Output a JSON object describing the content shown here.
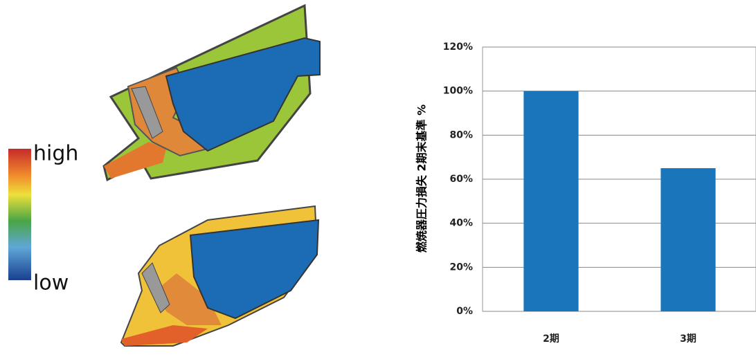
{
  "colorbar": {
    "high": "high",
    "low": "low"
  },
  "chart_data": {
    "type": "bar",
    "y_label": "燃焼器圧力損失 2期末基準 %",
    "categories": [
      "2期",
      "3期"
    ],
    "values": [
      100,
      65
    ],
    "color": "#1a75bb",
    "ylim": [
      0,
      120
    ],
    "yticks": [
      {
        "value": 0,
        "label": "0%"
      },
      {
        "value": 20,
        "label": "20%"
      },
      {
        "value": 40,
        "label": "40%"
      },
      {
        "value": 60,
        "label": "60%"
      },
      {
        "value": 80,
        "label": "80%"
      },
      {
        "value": 100,
        "label": "100%"
      },
      {
        "value": 120,
        "label": "120%"
      }
    ],
    "grid": true
  }
}
